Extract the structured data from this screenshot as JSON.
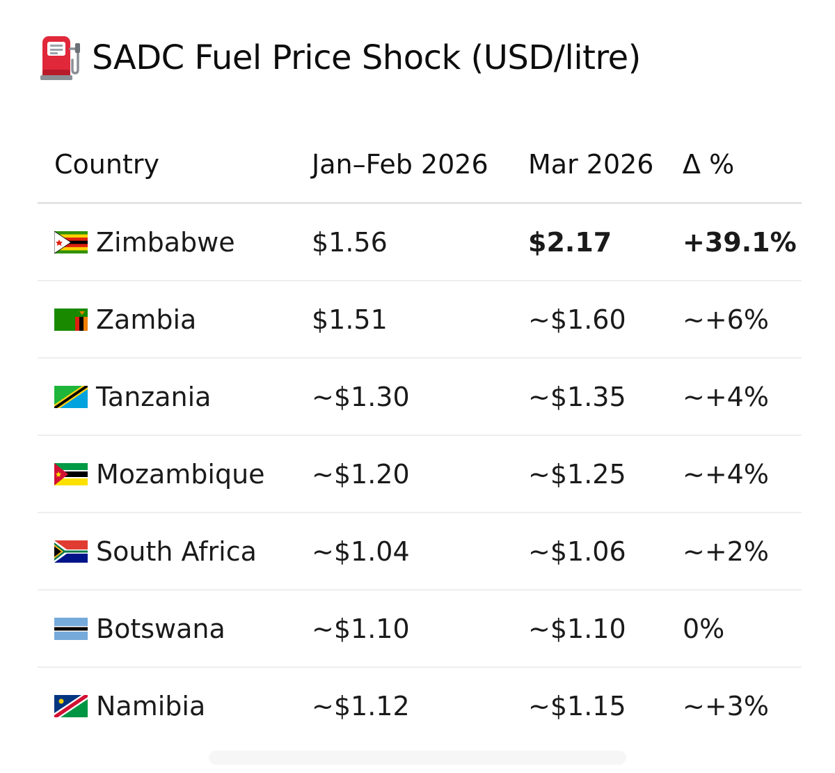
{
  "title": {
    "icon": "fuel-pump-icon",
    "text": "SADC Fuel Price Shock (USD/litre)"
  },
  "table": {
    "headers": {
      "country": "Country",
      "janfeb": "Jan–Feb 2026",
      "mar": "Mar 2026",
      "delta": "Δ %"
    },
    "rows": [
      {
        "flag": "zimbabwe-flag-icon",
        "country": "Zimbabwe",
        "janfeb": "$1.56",
        "mar": "$2.17",
        "delta": "+39.1%"
      },
      {
        "flag": "zambia-flag-icon",
        "country": "Zambia",
        "janfeb": "$1.51",
        "mar": "~$1.60",
        "delta": "~+6%"
      },
      {
        "flag": "tanzania-flag-icon",
        "country": "Tanzania",
        "janfeb": "~$1.30",
        "mar": "~$1.35",
        "delta": "~+4%"
      },
      {
        "flag": "mozambique-flag-icon",
        "country": "Mozambique",
        "janfeb": "~$1.20",
        "mar": "~$1.25",
        "delta": "~+4%"
      },
      {
        "flag": "south-africa-flag-icon",
        "country": "South Africa",
        "janfeb": "~$1.04",
        "mar": "~$1.06",
        "delta": "~+2%"
      },
      {
        "flag": "botswana-flag-icon",
        "country": "Botswana",
        "janfeb": "~$1.10",
        "mar": "~$1.10",
        "delta": "0%"
      },
      {
        "flag": "namibia-flag-icon",
        "country": "Namibia",
        "janfeb": "~$1.12",
        "mar": "~$1.15",
        "delta": "~+3%"
      }
    ]
  },
  "colors": {
    "pump_red": "#e0283a",
    "divider": "#eeeeee",
    "text": "#111111"
  }
}
